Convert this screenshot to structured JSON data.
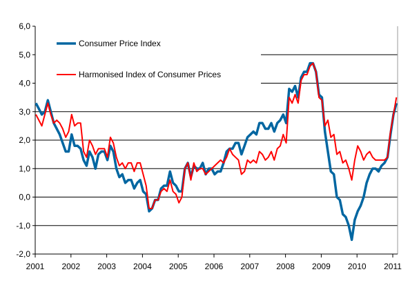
{
  "chart_data": {
    "type": "line",
    "title": "",
    "xlabel": "",
    "ylabel": "",
    "ylim": [
      -2,
      6
    ],
    "yticks": [
      "-2,0",
      "-1,0",
      "0,0",
      "1,0",
      "2,0",
      "3,0",
      "4,0",
      "5,0",
      "6,0"
    ],
    "xticks": [
      "2001",
      "2002",
      "2003",
      "2004",
      "2005",
      "2006",
      "2007",
      "2008",
      "2009",
      "2010",
      "2011"
    ],
    "x_start": "2001-01",
    "x_frequency": "monthly",
    "grid": "horizontal",
    "legend_placement": "top-left",
    "series": [
      {
        "name": "Consumer Price Index",
        "color": "#0066a1",
        "values": [
          3.3,
          3.1,
          2.9,
          3.0,
          3.4,
          3.0,
          2.6,
          2.4,
          2.2,
          1.9,
          1.6,
          1.6,
          2.2,
          1.8,
          1.8,
          1.7,
          1.3,
          1.1,
          1.6,
          1.4,
          1.0,
          1.5,
          1.6,
          1.6,
          1.3,
          1.8,
          1.6,
          1.0,
          0.7,
          0.8,
          0.5,
          0.6,
          0.6,
          0.3,
          0.5,
          0.6,
          0.2,
          0.1,
          -0.5,
          -0.4,
          -0.1,
          -0.1,
          0.3,
          0.4,
          0.4,
          0.9,
          0.5,
          0.4,
          0.2,
          0.2,
          1.0,
          1.2,
          0.7,
          1.1,
          1.0,
          1.0,
          1.2,
          0.8,
          1.0,
          1.0,
          0.8,
          0.9,
          0.9,
          1.2,
          1.6,
          1.7,
          1.7,
          1.9,
          1.9,
          1.5,
          1.8,
          2.1,
          2.2,
          2.3,
          2.2,
          2.6,
          2.6,
          2.4,
          2.4,
          2.6,
          2.3,
          2.6,
          2.7,
          2.9,
          2.6,
          3.8,
          3.7,
          3.9,
          3.5,
          4.2,
          4.4,
          4.4,
          4.7,
          4.7,
          4.4,
          3.6,
          3.5,
          2.3,
          1.6,
          0.9,
          0.8,
          0.0,
          -0.1,
          -0.6,
          -0.7,
          -1.0,
          -1.5,
          -0.8,
          -0.5,
          -0.3,
          0.0,
          0.5,
          0.8,
          1.0,
          1.0,
          0.9,
          1.1,
          1.2,
          1.4,
          2.2,
          2.9,
          3.3
        ]
      },
      {
        "name": "Harmonised Index of Consumer Prices",
        "color": "#ff0000",
        "values": [
          2.9,
          2.7,
          2.5,
          2.9,
          3.3,
          2.9,
          2.6,
          2.7,
          2.6,
          2.4,
          2.1,
          2.3,
          2.9,
          2.5,
          2.6,
          2.6,
          1.6,
          1.4,
          2.0,
          1.8,
          1.5,
          1.7,
          1.7,
          1.7,
          1.4,
          2.1,
          1.9,
          1.4,
          1.1,
          1.2,
          1.0,
          1.2,
          1.2,
          0.9,
          1.2,
          1.2,
          0.8,
          0.4,
          -0.4,
          -0.4,
          -0.1,
          -0.1,
          0.2,
          0.3,
          0.2,
          0.6,
          0.2,
          0.1,
          -0.2,
          0.0,
          1.0,
          1.2,
          0.6,
          1.2,
          0.9,
          1.0,
          1.0,
          0.8,
          0.9,
          1.0,
          1.1,
          1.2,
          1.3,
          1.2,
          1.4,
          1.7,
          1.5,
          1.4,
          1.3,
          0.8,
          0.9,
          1.3,
          1.2,
          1.3,
          1.2,
          1.6,
          1.5,
          1.3,
          1.4,
          1.6,
          1.3,
          1.7,
          1.8,
          2.2,
          1.9,
          3.5,
          3.3,
          3.6,
          3.3,
          4.1,
          4.3,
          4.3,
          4.6,
          4.7,
          4.4,
          3.5,
          3.4,
          2.5,
          2.7,
          2.1,
          2.2,
          1.5,
          1.6,
          1.2,
          1.3,
          1.0,
          0.6,
          1.3,
          1.8,
          1.6,
          1.3,
          1.5,
          1.6,
          1.4,
          1.3,
          1.3,
          1.3,
          1.3,
          1.4,
          2.3,
          2.9,
          3.5
        ]
      }
    ]
  }
}
